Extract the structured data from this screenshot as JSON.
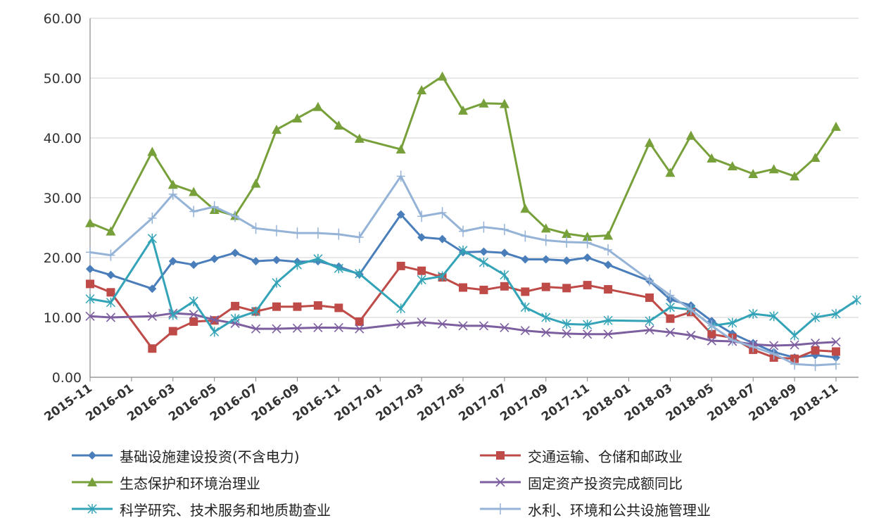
{
  "chart_data": {
    "type": "line",
    "title": "",
    "xlabel": "",
    "ylabel": "",
    "ylim": [
      0,
      60
    ],
    "yticks": [
      "0.00",
      "10.00",
      "20.00",
      "30.00",
      "40.00",
      "50.00",
      "60.00"
    ],
    "x_tick_labels": [
      "2015-11",
      "2016-01",
      "2016-03",
      "2016-05",
      "2016-07",
      "2016-09",
      "2016-11",
      "2017-01",
      "2017-03",
      "2017-05",
      "2017-07",
      "2017-09",
      "2017-11",
      "2018-01",
      "2018-03",
      "2018-05",
      "2018-07",
      "2018-09",
      "2018-11"
    ],
    "grid": "horizontal",
    "legend_position": "bottom",
    "series": [
      {
        "name": "基础设施建设投资(不含电力)",
        "color": "#4a7ebb",
        "marker": "diamond",
        "points": [
          [
            "2015-11",
            18.1
          ],
          [
            "2015-12",
            17.1
          ],
          [
            "2016-02",
            14.8
          ],
          [
            "2016-03",
            19.4
          ],
          [
            "2016-04",
            18.8
          ],
          [
            "2016-05",
            19.8
          ],
          [
            "2016-06",
            20.8
          ],
          [
            "2016-07",
            19.4
          ],
          [
            "2016-08",
            19.6
          ],
          [
            "2016-09",
            19.3
          ],
          [
            "2016-10",
            19.4
          ],
          [
            "2016-11",
            18.5
          ],
          [
            "2016-12",
            17.2
          ],
          [
            "2017-02",
            27.2
          ],
          [
            "2017-03",
            23.4
          ],
          [
            "2017-04",
            23.1
          ],
          [
            "2017-05",
            20.9
          ],
          [
            "2017-06",
            21.0
          ],
          [
            "2017-07",
            20.8
          ],
          [
            "2017-08",
            19.7
          ],
          [
            "2017-09",
            19.7
          ],
          [
            "2017-10",
            19.5
          ],
          [
            "2017-11",
            20.0
          ],
          [
            "2017-12",
            18.8
          ],
          [
            "2018-02",
            16.1
          ],
          [
            "2018-03",
            13.0
          ],
          [
            "2018-04",
            12.0
          ],
          [
            "2018-05",
            9.4
          ],
          [
            "2018-06",
            7.3
          ],
          [
            "2018-07",
            5.7
          ],
          [
            "2018-08",
            4.2
          ],
          [
            "2018-09",
            3.3
          ],
          [
            "2018-10",
            3.7
          ],
          [
            "2018-11",
            3.3
          ]
        ]
      },
      {
        "name": "交通运输、仓储和邮政业",
        "color": "#be4b48",
        "marker": "square",
        "points": [
          [
            "2015-11",
            15.6
          ],
          [
            "2015-12",
            14.2
          ],
          [
            "2016-02",
            4.8
          ],
          [
            "2016-03",
            7.7
          ],
          [
            "2016-04",
            9.3
          ],
          [
            "2016-05",
            9.5
          ],
          [
            "2016-06",
            11.9
          ],
          [
            "2016-07",
            11.0
          ],
          [
            "2016-08",
            11.8
          ],
          [
            "2016-09",
            11.8
          ],
          [
            "2016-10",
            12.0
          ],
          [
            "2016-11",
            11.6
          ],
          [
            "2016-12",
            9.3
          ],
          [
            "2017-02",
            18.6
          ],
          [
            "2017-03",
            17.8
          ],
          [
            "2017-04",
            16.7
          ],
          [
            "2017-05",
            15.0
          ],
          [
            "2017-06",
            14.6
          ],
          [
            "2017-07",
            15.2
          ],
          [
            "2017-08",
            14.3
          ],
          [
            "2017-09",
            15.1
          ],
          [
            "2017-10",
            14.9
          ],
          [
            "2017-11",
            15.4
          ],
          [
            "2017-12",
            14.7
          ],
          [
            "2018-02",
            13.3
          ],
          [
            "2018-03",
            9.8
          ],
          [
            "2018-04",
            10.9
          ],
          [
            "2018-05",
            7.2
          ],
          [
            "2018-06",
            6.6
          ],
          [
            "2018-07",
            4.6
          ],
          [
            "2018-08",
            3.3
          ],
          [
            "2018-09",
            3.1
          ],
          [
            "2018-10",
            4.5
          ],
          [
            "2018-11",
            4.3
          ]
        ]
      },
      {
        "name": "生态保护和环境治理业",
        "color": "#77a03b",
        "marker": "triangle",
        "points": [
          [
            "2015-11",
            25.8
          ],
          [
            "2015-12",
            24.4
          ],
          [
            "2016-02",
            37.7
          ],
          [
            "2016-03",
            32.2
          ],
          [
            "2016-04",
            31.0
          ],
          [
            "2016-05",
            28.0
          ],
          [
            "2016-06",
            27.0
          ],
          [
            "2016-07",
            32.4
          ],
          [
            "2016-08",
            41.4
          ],
          [
            "2016-09",
            43.3
          ],
          [
            "2016-10",
            45.2
          ],
          [
            "2016-11",
            42.1
          ],
          [
            "2016-12",
            39.9
          ],
          [
            "2017-02",
            38.1
          ],
          [
            "2017-03",
            48.0
          ],
          [
            "2017-04",
            50.3
          ],
          [
            "2017-05",
            44.6
          ],
          [
            "2017-06",
            45.8
          ],
          [
            "2017-07",
            45.7
          ],
          [
            "2017-08",
            28.2
          ],
          [
            "2017-09",
            24.9
          ],
          [
            "2017-10",
            24.0
          ],
          [
            "2017-11",
            23.5
          ],
          [
            "2017-12",
            23.7
          ],
          [
            "2018-02",
            39.2
          ],
          [
            "2018-03",
            34.2
          ],
          [
            "2018-04",
            40.4
          ],
          [
            "2018-05",
            36.6
          ],
          [
            "2018-06",
            35.3
          ],
          [
            "2018-07",
            34.0
          ],
          [
            "2018-08",
            34.8
          ],
          [
            "2018-09",
            33.6
          ],
          [
            "2018-10",
            36.7
          ],
          [
            "2018-11",
            41.9
          ]
        ]
      },
      {
        "name": "固定资产投资完成额同比",
        "color": "#7d5fa0",
        "marker": "x",
        "points": [
          [
            "2015-11",
            10.2
          ],
          [
            "2015-12",
            10.0
          ],
          [
            "2016-02",
            10.2
          ],
          [
            "2016-03",
            10.7
          ],
          [
            "2016-04",
            10.5
          ],
          [
            "2016-05",
            9.6
          ],
          [
            "2016-06",
            9.0
          ],
          [
            "2016-07",
            8.1
          ],
          [
            "2016-08",
            8.1
          ],
          [
            "2016-09",
            8.2
          ],
          [
            "2016-10",
            8.3
          ],
          [
            "2016-11",
            8.3
          ],
          [
            "2016-12",
            8.1
          ],
          [
            "2017-02",
            8.9
          ],
          [
            "2017-03",
            9.2
          ],
          [
            "2017-04",
            8.9
          ],
          [
            "2017-05",
            8.6
          ],
          [
            "2017-06",
            8.6
          ],
          [
            "2017-07",
            8.3
          ],
          [
            "2017-08",
            7.8
          ],
          [
            "2017-09",
            7.5
          ],
          [
            "2017-10",
            7.3
          ],
          [
            "2017-11",
            7.2
          ],
          [
            "2017-12",
            7.2
          ],
          [
            "2018-02",
            7.9
          ],
          [
            "2018-03",
            7.5
          ],
          [
            "2018-04",
            7.0
          ],
          [
            "2018-05",
            6.1
          ],
          [
            "2018-06",
            6.0
          ],
          [
            "2018-07",
            5.5
          ],
          [
            "2018-08",
            5.3
          ],
          [
            "2018-09",
            5.4
          ],
          [
            "2018-10",
            5.7
          ],
          [
            "2018-11",
            5.9
          ]
        ]
      },
      {
        "name": "科学研究、技术服务和地质勘查业",
        "color": "#33a3b7",
        "marker": "asterisk",
        "points": [
          [
            "2015-11",
            13.1
          ],
          [
            "2015-12",
            12.5
          ],
          [
            "2016-02",
            23.2
          ],
          [
            "2016-03",
            10.4
          ],
          [
            "2016-04",
            12.7
          ],
          [
            "2016-05",
            7.6
          ],
          [
            "2016-06",
            9.8
          ],
          [
            "2016-07",
            11.0
          ],
          [
            "2016-08",
            15.8
          ],
          [
            "2016-09",
            18.8
          ],
          [
            "2016-10",
            19.8
          ],
          [
            "2016-11",
            18.2
          ],
          [
            "2016-12",
            17.3
          ],
          [
            "2017-02",
            11.5
          ],
          [
            "2017-03",
            16.3
          ],
          [
            "2017-04",
            16.9
          ],
          [
            "2017-05",
            21.2
          ],
          [
            "2017-06",
            19.2
          ],
          [
            "2017-07",
            17.1
          ],
          [
            "2017-08",
            11.7
          ],
          [
            "2017-09",
            10.0
          ],
          [
            "2017-10",
            8.9
          ],
          [
            "2017-11",
            8.8
          ],
          [
            "2017-12",
            9.5
          ],
          [
            "2018-02",
            9.4
          ],
          [
            "2018-03",
            11.7
          ],
          [
            "2018-04",
            11.3
          ],
          [
            "2018-05",
            8.6
          ],
          [
            "2018-06",
            9.1
          ],
          [
            "2018-07",
            10.6
          ],
          [
            "2018-08",
            10.2
          ],
          [
            "2018-09",
            7.0
          ],
          [
            "2018-10",
            10.0
          ],
          [
            "2018-11",
            10.6
          ],
          [
            "2018-12",
            12.9
          ]
        ]
      },
      {
        "name": "水利、环境和公共设施管理业",
        "color": "#95b3d7",
        "marker": "plus",
        "points": [
          [
            "2015-11",
            20.9
          ],
          [
            "2015-12",
            20.4
          ],
          [
            "2016-02",
            26.6
          ],
          [
            "2016-03",
            30.6
          ],
          [
            "2016-04",
            27.7
          ],
          [
            "2016-05",
            28.5
          ],
          [
            "2016-06",
            26.9
          ],
          [
            "2016-07",
            24.9
          ],
          [
            "2016-08",
            24.5
          ],
          [
            "2016-09",
            24.1
          ],
          [
            "2016-10",
            24.1
          ],
          [
            "2016-11",
            23.9
          ],
          [
            "2016-12",
            23.4
          ],
          [
            "2017-02",
            33.6
          ],
          [
            "2017-03",
            26.9
          ],
          [
            "2017-04",
            27.5
          ],
          [
            "2017-05",
            24.4
          ],
          [
            "2017-06",
            25.1
          ],
          [
            "2017-07",
            24.7
          ],
          [
            "2017-08",
            23.6
          ],
          [
            "2017-09",
            22.9
          ],
          [
            "2017-10",
            22.6
          ],
          [
            "2017-11",
            22.5
          ],
          [
            "2017-12",
            21.3
          ],
          [
            "2018-02",
            16.2
          ],
          [
            "2018-03",
            13.7
          ],
          [
            "2018-04",
            11.3
          ],
          [
            "2018-05",
            8.6
          ],
          [
            "2018-06",
            6.2
          ],
          [
            "2018-07",
            5.1
          ],
          [
            "2018-08",
            3.9
          ],
          [
            "2018-09",
            2.2
          ],
          [
            "2018-10",
            2.0
          ],
          [
            "2018-11",
            2.2
          ]
        ]
      }
    ]
  }
}
